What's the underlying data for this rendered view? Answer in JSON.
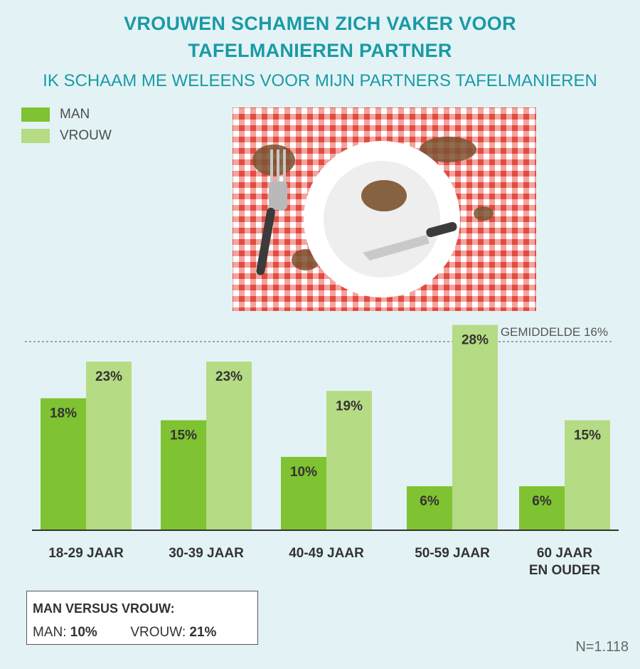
{
  "title_line1": "VROUWEN SCHAMEN ZICH VAKER VOOR",
  "title_line2": "TAFELMANIEREN PARTNER",
  "subtitle": "IK SCHAAM ME WELEENS VOOR MIJN PARTNERS TAFELMANIEREN",
  "legend": {
    "man": "MAN",
    "vrouw": "VROUW"
  },
  "colors": {
    "man": "#7fc232",
    "vrouw": "#b5db84",
    "title": "#1a9aa6",
    "background": "#e3f3f5"
  },
  "chart_data": {
    "type": "bar",
    "title": "VROUWEN SCHAMEN ZICH VAKER VOOR TAFELMANIEREN PARTNER",
    "subtitle": "IK SCHAAM ME WELEENS VOOR MIJN PARTNERS TAFELMANIEREN",
    "categories": [
      [
        "18-29 JAAR"
      ],
      [
        "30-39 JAAR"
      ],
      [
        "40-49 JAAR"
      ],
      [
        "50-59 JAAR"
      ],
      [
        "60 JAAR",
        "EN OUDER"
      ]
    ],
    "series": [
      {
        "name": "MAN",
        "values": [
          18,
          15,
          10,
          6,
          6
        ],
        "labels": [
          "18%",
          "15%",
          "10%",
          "6%",
          "6%"
        ]
      },
      {
        "name": "VROUW",
        "values": [
          23,
          23,
          19,
          28,
          15
        ],
        "labels": [
          "23%",
          "23%",
          "19%",
          "28%",
          "15%"
        ]
      }
    ],
    "unit": "%",
    "ylim": [
      0,
      40
    ],
    "reference_line": {
      "value": 16,
      "label": "GEMIDDELDE 16%"
    },
    "legend_position": "top-left",
    "grid": false
  },
  "summary": {
    "title": "MAN VERSUS VROUW:",
    "man_label": "MAN:",
    "man_value": "10%",
    "vrouw_label": "VROUW:",
    "vrouw_value": "21%"
  },
  "sample_size": "N=1.118"
}
